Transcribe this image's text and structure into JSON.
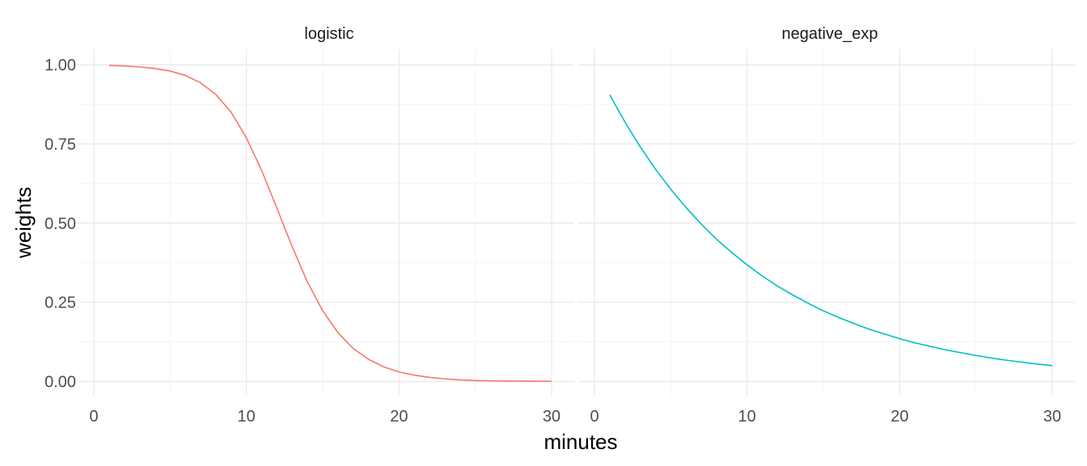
{
  "chart_data": {
    "type": "line",
    "xlabel": "minutes",
    "ylabel": "weights",
    "xlim": [
      0,
      30
    ],
    "ylim": [
      0,
      1
    ],
    "x_ticks": [
      0,
      10,
      20,
      30
    ],
    "x_tick_labels": [
      "0",
      "10",
      "20",
      "30"
    ],
    "y_ticks": [
      0,
      0.25,
      0.5,
      0.75,
      1.0
    ],
    "y_tick_labels": [
      "0.00",
      "0.25",
      "0.50",
      "0.75",
      "1.00"
    ],
    "grid": true,
    "legend": "none",
    "panels": [
      {
        "label": "logistic",
        "color": "#F8766D",
        "x": [
          1,
          2,
          3,
          4,
          5,
          6,
          7,
          8,
          9,
          10,
          11,
          12,
          13,
          14,
          15,
          16,
          17,
          18,
          19,
          20,
          21,
          22,
          23,
          24,
          25,
          26,
          27,
          28,
          29,
          30
        ],
        "y": [
          0.998,
          0.996,
          0.993,
          0.988,
          0.98,
          0.966,
          0.943,
          0.906,
          0.85,
          0.769,
          0.666,
          0.547,
          0.425,
          0.314,
          0.223,
          0.154,
          0.104,
          0.07,
          0.046,
          0.03,
          0.02,
          0.013,
          0.008,
          0.005,
          0.003,
          0.002,
          0.0015,
          0.001,
          0.0007,
          0.0005
        ]
      },
      {
        "label": "negative_exp",
        "color": "#00BFC4",
        "x": [
          1,
          2,
          3,
          4,
          5,
          6,
          7,
          8,
          9,
          10,
          11,
          12,
          13,
          14,
          15,
          16,
          17,
          18,
          19,
          20,
          21,
          22,
          23,
          24,
          25,
          26,
          27,
          28,
          29,
          30
        ],
        "y": [
          0.905,
          0.819,
          0.741,
          0.67,
          0.607,
          0.549,
          0.497,
          0.449,
          0.407,
          0.368,
          0.333,
          0.301,
          0.273,
          0.247,
          0.223,
          0.202,
          0.183,
          0.165,
          0.15,
          0.135,
          0.122,
          0.111,
          0.1,
          0.091,
          0.082,
          0.074,
          0.067,
          0.061,
          0.055,
          0.05
        ]
      }
    ]
  }
}
